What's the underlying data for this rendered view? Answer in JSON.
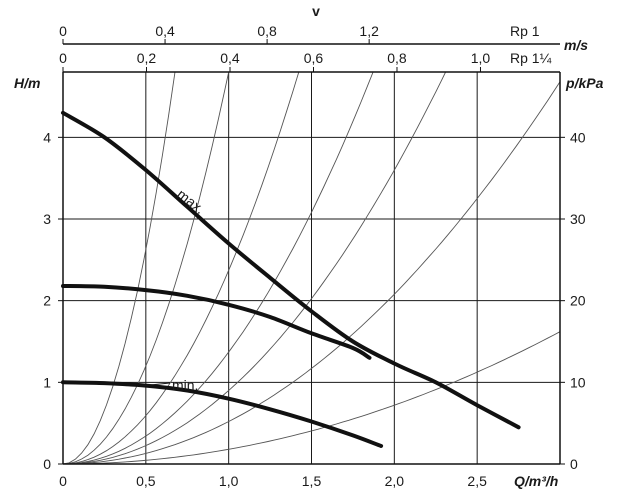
{
  "chart_data": {
    "type": "line",
    "title": "",
    "xlabel": "Q/m³/h",
    "ylabel_left": "H/m",
    "ylabel_right": "p/kPa",
    "top_axis_title": "v",
    "top_axis_unit": "m/s",
    "top_scale_1_name": "Rp 1",
    "top_scale_2_name": "Rp 1¼",
    "xlim": [
      0,
      3.0
    ],
    "ylim": [
      0,
      4.8
    ],
    "ylim_right": [
      0,
      48
    ],
    "grid": true,
    "x_ticks": [
      "0",
      "0,5",
      "1,0",
      "1,5",
      "2,0",
      "2,5"
    ],
    "y_ticks_left": [
      "0",
      "1",
      "2",
      "3",
      "4"
    ],
    "y_ticks_right": [
      "0",
      "10",
      "20",
      "30",
      "40"
    ],
    "top_ticks_rp1": [
      "0",
      "0,4",
      "0,8",
      "1,2"
    ],
    "top_ticks_rp114": [
      "0",
      "0,2",
      "0,4",
      "0,6",
      "0,8",
      "1,0"
    ],
    "top_scale_rp1_q_per_unit": 1.54,
    "top_scale_rp114_q_per_unit": 2.52,
    "series": [
      {
        "name": "max.",
        "x": [
          0,
          0.25,
          0.5,
          0.75,
          1.0,
          1.25,
          1.5,
          1.75,
          2.0,
          2.25,
          2.5,
          2.75
        ],
        "y": [
          4.3,
          4.0,
          3.6,
          3.15,
          2.7,
          2.28,
          1.87,
          1.5,
          1.23,
          1.0,
          0.72,
          0.45
        ]
      },
      {
        "name": "",
        "x": [
          0,
          0.25,
          0.5,
          0.75,
          1.0,
          1.25,
          1.5,
          1.75,
          1.85
        ],
        "y": [
          2.18,
          2.17,
          2.13,
          2.06,
          1.95,
          1.8,
          1.6,
          1.42,
          1.3
        ]
      },
      {
        "name": "min.",
        "x": [
          0,
          0.25,
          0.5,
          0.75,
          1.0,
          1.25,
          1.5,
          1.75,
          1.92
        ],
        "y": [
          1.0,
          0.99,
          0.96,
          0.9,
          0.8,
          0.67,
          0.52,
          0.35,
          0.22
        ]
      }
    ],
    "system_curves_k": [
      10.5,
      4.8,
      2.37,
      1.37,
      0.9,
      0.52,
      0.18
    ],
    "annotations": [
      "max.",
      "min."
    ]
  }
}
